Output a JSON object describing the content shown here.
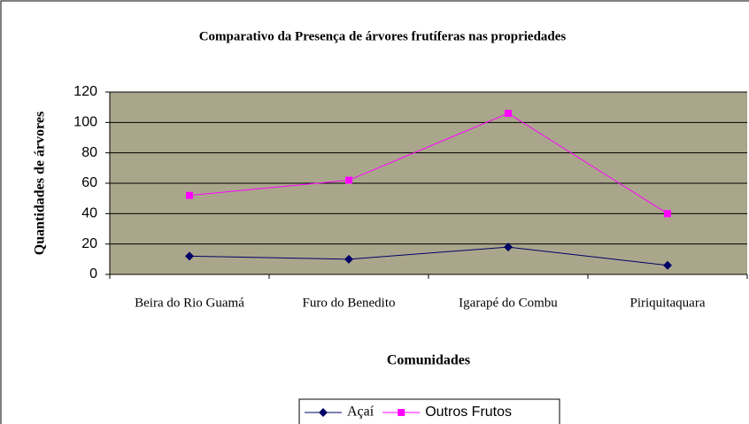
{
  "chart_data": {
    "type": "line",
    "title": "Comparativo da Presença de árvores frutíferas nas propriedades",
    "x_label": "Comunidades",
    "y_label": "Quantidades de árvores",
    "categories": [
      "Beira do Rio Guamá",
      "Furo do Benedito",
      "Igarapé do Combu",
      "Piriquitaquara"
    ],
    "series": [
      {
        "name": "Açaí",
        "color": "#000066",
        "marker": "diamond",
        "values": [
          12,
          10,
          18,
          6
        ]
      },
      {
        "name": "Outros Frutos",
        "color": "#ff00ff",
        "marker": "square",
        "values": [
          52,
          62,
          106,
          40
        ]
      }
    ],
    "ylim": [
      0,
      120
    ],
    "yticks": [
      0,
      20,
      40,
      60,
      80,
      100,
      120
    ],
    "grid": true,
    "legend": "bottom"
  }
}
